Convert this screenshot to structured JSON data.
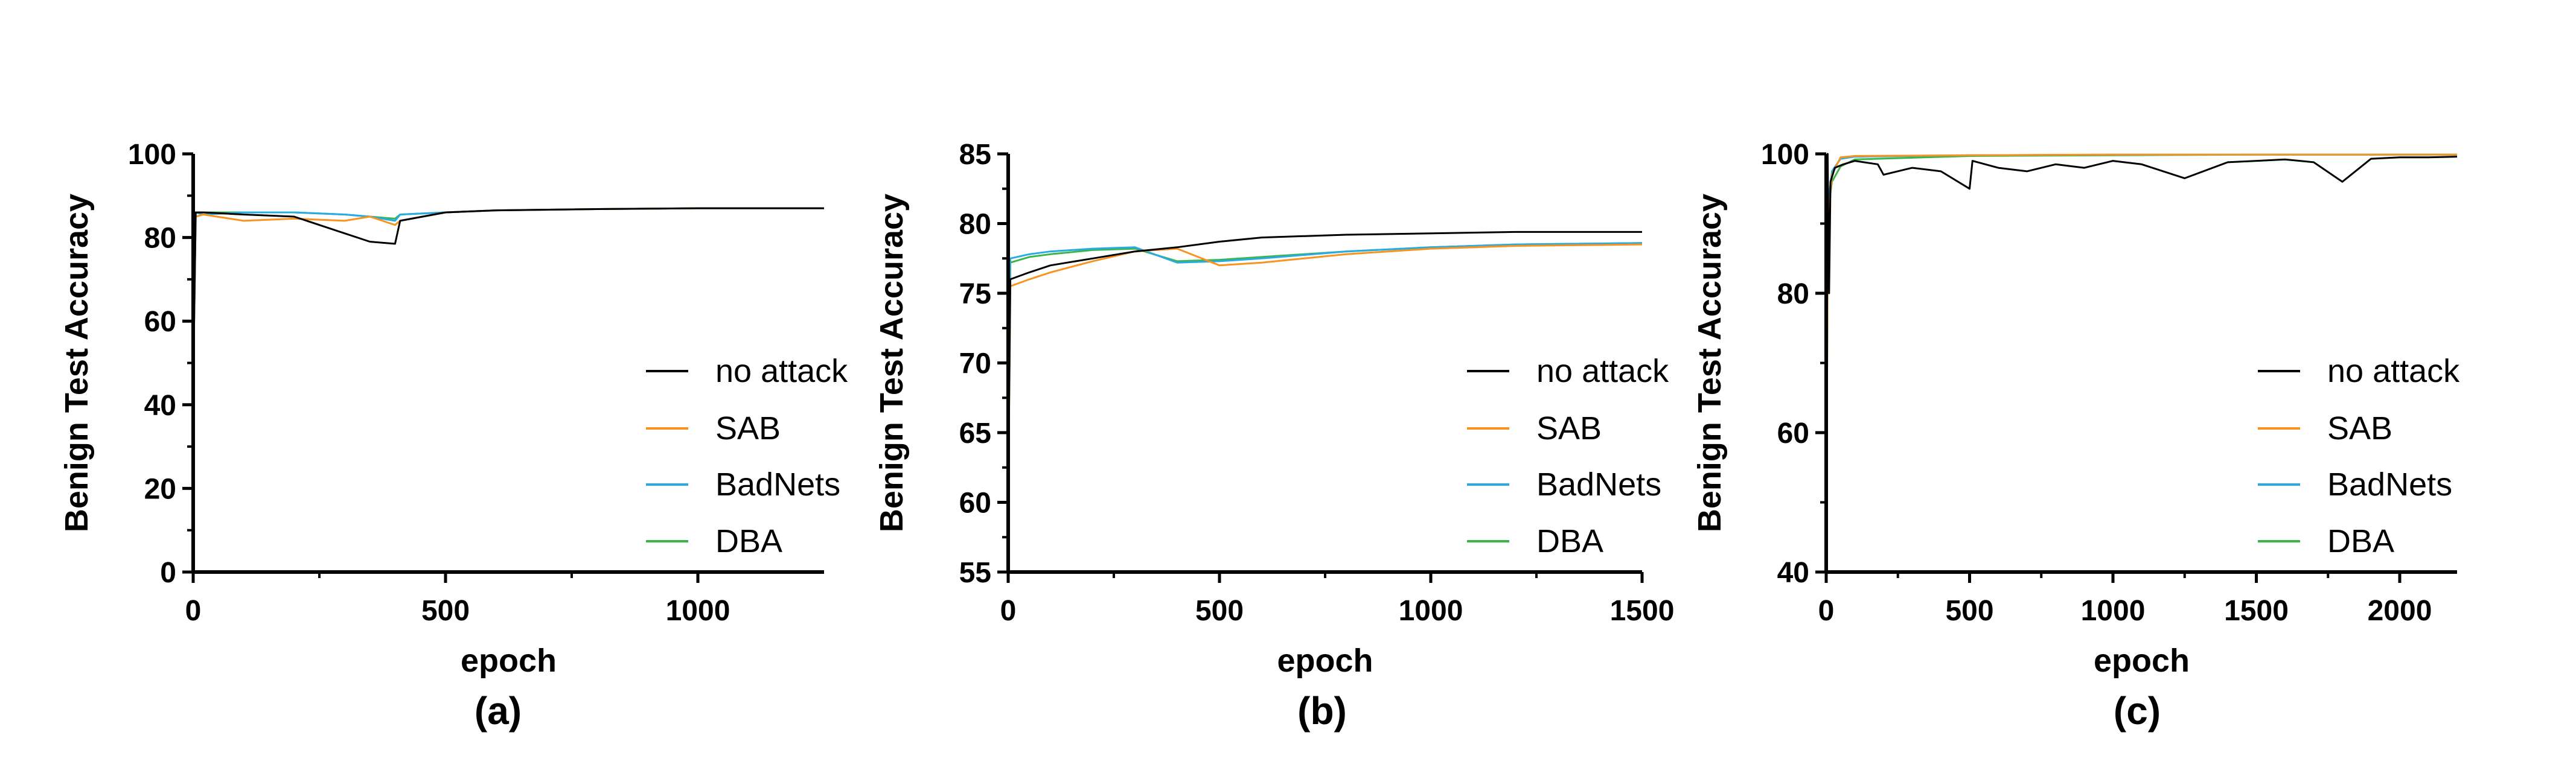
{
  "colors": {
    "no attack": "#000000",
    "SAB": "#f7931e",
    "BadNets": "#29abe2",
    "DBA": "#39b54a"
  },
  "chart_data": [
    {
      "type": "line",
      "panel_label": "(a)",
      "xlabel": "epoch",
      "ylabel": "Benign Test Accuracy",
      "xlim": [
        0,
        1250
      ],
      "ylim": [
        0,
        100
      ],
      "xticks": [
        0,
        500,
        1000
      ],
      "yticks": [
        0,
        20,
        40,
        60,
        80,
        100
      ],
      "legend": [
        "no attack",
        "SAB",
        "BadNets",
        "DBA"
      ],
      "legend_position": "right",
      "series": [
        {
          "name": "no attack",
          "x": [
            0,
            5,
            20,
            100,
            200,
            300,
            350,
            400,
            410,
            500,
            600,
            800,
            1000,
            1250
          ],
          "y": [
            45,
            86,
            86,
            85.5,
            85,
            81,
            79,
            78.5,
            84,
            86,
            86.5,
            86.8,
            87,
            87
          ]
        },
        {
          "name": "SAB",
          "x": [
            0,
            5,
            20,
            100,
            200,
            300,
            350,
            400,
            410,
            500,
            600,
            800,
            1000,
            1250
          ],
          "y": [
            46,
            85,
            85.5,
            84,
            84.5,
            84,
            85,
            83,
            84,
            86,
            86.5,
            86.8,
            87,
            87
          ]
        },
        {
          "name": "BadNets",
          "x": [
            0,
            5,
            20,
            100,
            200,
            300,
            350,
            400,
            410,
            500,
            600,
            800,
            1000,
            1250
          ],
          "y": [
            44,
            86,
            85.5,
            86,
            86,
            85.5,
            85,
            84,
            85.5,
            86,
            86.5,
            86.8,
            87,
            87
          ]
        },
        {
          "name": "DBA",
          "x": [
            0,
            5,
            20,
            100,
            200,
            300,
            350,
            400,
            410,
            500,
            600,
            800,
            1000,
            1250
          ],
          "y": [
            45,
            86,
            86,
            86,
            86,
            85.5,
            85,
            84.5,
            85.5,
            86,
            86.5,
            86.8,
            87,
            87
          ]
        }
      ]
    },
    {
      "type": "line",
      "panel_label": "(b)",
      "xlabel": "epoch",
      "ylabel": "Benign Test Accuracy",
      "xlim": [
        0,
        1500
      ],
      "ylim": [
        55,
        85
      ],
      "xticks": [
        0,
        500,
        1000,
        1500
      ],
      "yticks": [
        55,
        60,
        65,
        70,
        75,
        80,
        85
      ],
      "legend": [
        "no attack",
        "SAB",
        "BadNets",
        "DBA"
      ],
      "legend_position": "right",
      "series": [
        {
          "name": "no attack",
          "x": [
            0,
            5,
            50,
            100,
            200,
            300,
            400,
            500,
            600,
            800,
            1000,
            1200,
            1500
          ],
          "y": [
            60,
            76,
            76.5,
            77,
            77.5,
            78,
            78.3,
            78.7,
            79,
            79.2,
            79.3,
            79.4,
            79.4
          ]
        },
        {
          "name": "SAB",
          "x": [
            0,
            5,
            50,
            100,
            200,
            300,
            400,
            500,
            600,
            800,
            1000,
            1200,
            1500
          ],
          "y": [
            59,
            75.5,
            76,
            76.5,
            77.3,
            78,
            78.2,
            77,
            77.2,
            77.8,
            78.2,
            78.4,
            78.5
          ]
        },
        {
          "name": "BadNets",
          "x": [
            0,
            5,
            50,
            100,
            200,
            300,
            400,
            500,
            600,
            800,
            1000,
            1200,
            1500
          ],
          "y": [
            62,
            77.5,
            77.8,
            78,
            78.2,
            78.3,
            77.2,
            77.3,
            77.5,
            78,
            78.3,
            78.5,
            78.6
          ]
        },
        {
          "name": "DBA",
          "x": [
            0,
            5,
            50,
            100,
            200,
            300,
            400,
            500,
            600,
            800,
            1000,
            1200,
            1500
          ],
          "y": [
            62,
            77.2,
            77.6,
            77.8,
            78.1,
            78.2,
            77.3,
            77.4,
            77.6,
            78,
            78.3,
            78.5,
            78.6
          ]
        }
      ]
    },
    {
      "type": "line",
      "panel_label": "(c)",
      "xlabel": "epoch",
      "ylabel": "Benign Test Accuracy",
      "xlim": [
        0,
        2200
      ],
      "ylim": [
        40,
        100
      ],
      "xticks": [
        0,
        500,
        1000,
        1500,
        2000
      ],
      "yticks": [
        40,
        60,
        80,
        100
      ],
      "legend": [
        "no attack",
        "SAB",
        "BadNets",
        "DBA"
      ],
      "legend_position": "right",
      "series": [
        {
          "name": "no attack",
          "x": [
            0,
            5,
            10,
            15,
            30,
            60,
            100,
            180,
            200,
            300,
            400,
            500,
            510,
            600,
            700,
            800,
            900,
            1000,
            1100,
            1250,
            1400,
            1500,
            1600,
            1700,
            1800,
            1900,
            2000,
            2100,
            2200
          ],
          "y": [
            40,
            100,
            80,
            96,
            98,
            98.5,
            99,
            98.5,
            97,
            98,
            97.5,
            95,
            99,
            98,
            97.5,
            98.5,
            98,
            99,
            98.5,
            96.5,
            98.8,
            99,
            99.2,
            98.8,
            96,
            99.3,
            99.5,
            99.5,
            99.6
          ]
        },
        {
          "name": "SAB",
          "x": [
            0,
            5,
            10,
            20,
            50,
            100,
            500,
            1000,
            1500,
            2000,
            2200
          ],
          "y": [
            40,
            85,
            92,
            97,
            99.5,
            99.7,
            99.8,
            99.9,
            99.9,
            99.9,
            99.9
          ]
        },
        {
          "name": "BadNets",
          "x": [
            0,
            5,
            10,
            20,
            50,
            100,
            500,
            1000,
            1500,
            2000,
            2200
          ],
          "y": [
            40,
            88,
            94,
            97.5,
            99.3,
            99.6,
            99.8,
            99.9,
            99.9,
            99.9,
            99.9
          ]
        },
        {
          "name": "DBA",
          "x": [
            0,
            5,
            10,
            20,
            50,
            100,
            500,
            1000,
            1500,
            2000,
            2200
          ],
          "y": [
            40,
            86,
            93,
            96,
            98.2,
            99.2,
            99.7,
            99.8,
            99.9,
            99.9,
            99.9
          ]
        }
      ]
    }
  ]
}
